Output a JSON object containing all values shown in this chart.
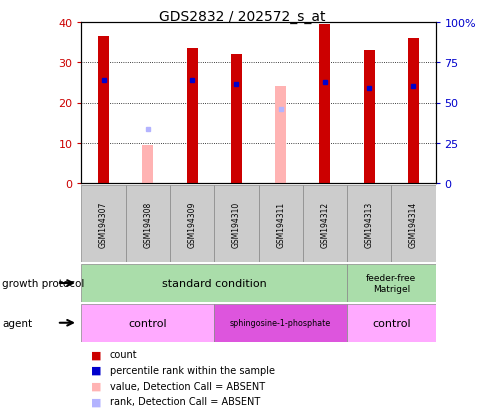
{
  "title": "GDS2832 / 202572_s_at",
  "samples": [
    "GSM194307",
    "GSM194308",
    "GSM194309",
    "GSM194310",
    "GSM194311",
    "GSM194312",
    "GSM194313",
    "GSM194314"
  ],
  "count_values": [
    36.5,
    null,
    33.5,
    32.0,
    null,
    39.5,
    33.0,
    36.0
  ],
  "percentile_values": [
    25.5,
    null,
    25.5,
    24.5,
    null,
    25.0,
    23.5,
    24.0
  ],
  "absent_value_values": [
    null,
    9.5,
    null,
    null,
    24.0,
    null,
    null,
    null
  ],
  "absent_rank_values": [
    null,
    13.5,
    null,
    null,
    18.5,
    null,
    null,
    null
  ],
  "ylim_left": [
    0,
    40
  ],
  "ylim_right": [
    0,
    100
  ],
  "yticks_left": [
    0,
    10,
    20,
    30,
    40
  ],
  "yticks_right": [
    0,
    25,
    50,
    75,
    100
  ],
  "ytick_right_labels": [
    "0",
    "25",
    "50",
    "75",
    "100%"
  ],
  "color_count": "#cc0000",
  "color_percentile": "#0000cc",
  "color_absent_value": "#ffb3b3",
  "color_absent_rank": "#b3b3ff",
  "bar_width": 0.25,
  "color_growth_std": "#aaddaa",
  "color_growth_feeder": "#aaddaa",
  "color_agent_control": "#ffaaff",
  "color_agent_sphingo": "#dd55dd",
  "color_sample_bg": "#cccccc",
  "legend_items": [
    {
      "label": "count",
      "color": "#cc0000",
      "marker": "s"
    },
    {
      "label": "percentile rank within the sample",
      "color": "#0000cc",
      "marker": "s"
    },
    {
      "label": "value, Detection Call = ABSENT",
      "color": "#ffb3b3",
      "marker": "s"
    },
    {
      "label": "rank, Detection Call = ABSENT",
      "color": "#b3b3ff",
      "marker": "s"
    }
  ]
}
